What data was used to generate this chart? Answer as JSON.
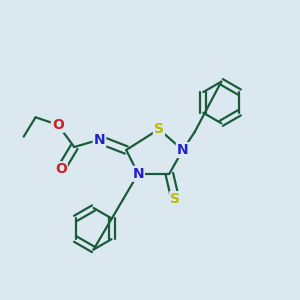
{
  "bg_color": "#dce8f0",
  "atom_colors": {
    "C": "#1a1a1a",
    "N": "#2222cc",
    "O": "#cc2222",
    "S_ring": "#bbbb00",
    "S_thioxo": "#bbbb00",
    "H": "#1a1a1a"
  },
  "bond_color": "#1a5c3a",
  "bond_width": 1.6,
  "figsize": [
    3.0,
    3.0
  ],
  "dpi": 100
}
